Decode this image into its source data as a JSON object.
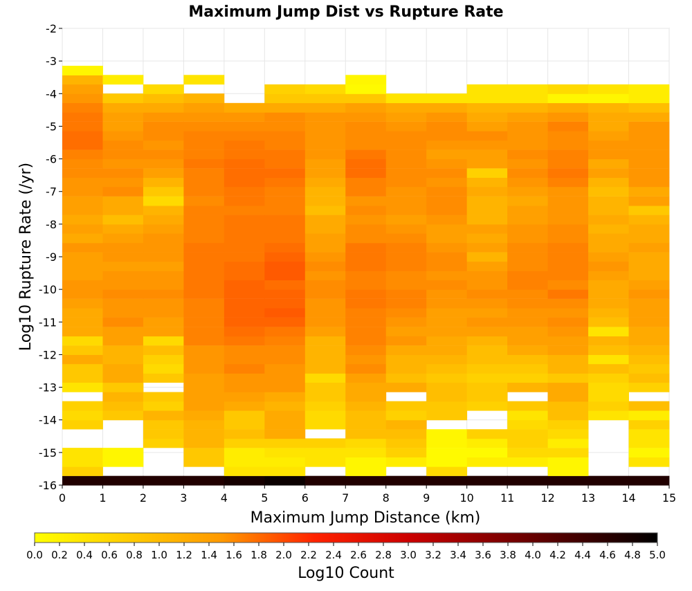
{
  "chart_data": {
    "type": "heatmap",
    "title": "Maximum Jump Dist vs Rupture Rate",
    "xlabel": "Maximum Jump Distance (km)",
    "ylabel": "Log10 Rupture Rate (/yr)",
    "colorbar_label": "Log10 Count",
    "xlim": [
      0,
      15
    ],
    "ylim": [
      -16,
      -2
    ],
    "x_ticks": [
      "0",
      "1",
      "2",
      "3",
      "4",
      "5",
      "6",
      "7",
      "8",
      "9",
      "10",
      "11",
      "12",
      "13",
      "14",
      "15"
    ],
    "y_ticks": [
      "-2",
      "-3",
      "-4",
      "-5",
      "-6",
      "-7",
      "-8",
      "-9",
      "-10",
      "-11",
      "-12",
      "-13",
      "-14",
      "-15",
      "-16"
    ],
    "colorbar_range": [
      0,
      5
    ],
    "colorbar_ticks": [
      "0.0",
      "0.2",
      "0.4",
      "0.6",
      "0.8",
      "1.0",
      "1.2",
      "1.4",
      "1.6",
      "1.8",
      "2.0",
      "2.2",
      "2.4",
      "2.6",
      "2.8",
      "3.0",
      "3.2",
      "3.4",
      "3.6",
      "3.8",
      "4.0",
      "4.2",
      "4.4",
      "4.6",
      "4.8",
      "5.0"
    ],
    "colormap": [
      "#ffff00",
      "#ff6600",
      "#dd0000",
      "#000000"
    ],
    "x_bins": [
      0.5,
      1.5,
      2.5,
      3.5,
      4.5,
      5.5,
      6.5,
      7.5,
      8.5,
      9.5,
      10.5,
      11.5,
      12.5,
      13.5,
      14.5
    ],
    "y_bin_width": 0.286,
    "y_bins": [
      -15.86,
      -15.57,
      -15.29,
      -15.0,
      -14.71,
      -14.43,
      -14.14,
      -13.86,
      -13.57,
      -13.29,
      -13.0,
      -12.71,
      -12.43,
      -12.14,
      -11.86,
      -11.57,
      -11.29,
      -11.0,
      -10.71,
      -10.43,
      -10.14,
      -9.86,
      -9.57,
      -9.29,
      -9.0,
      -8.71,
      -8.43,
      -8.14,
      -7.86,
      -7.57,
      -7.29,
      -7.0,
      -6.71,
      -6.43,
      -6.14,
      -5.86,
      -5.57,
      -5.29,
      -5.0,
      -4.71,
      -4.43,
      -4.14,
      -3.86,
      -3.57,
      -3.29
    ],
    "z": [
      [
        4.7,
        4.7,
        4.7,
        4.7,
        4.8,
        4.9,
        4.7,
        4.7,
        4.7,
        4.7,
        4.7,
        4.7,
        4.7,
        4.7,
        4.7
      ],
      [
        0.5,
        null,
        null,
        null,
        0.3,
        0.3,
        null,
        0.1,
        null,
        0.4,
        null,
        null,
        0.1,
        null,
        null
      ],
      [
        0.3,
        0.1,
        null,
        0.6,
        0.2,
        0.2,
        0.3,
        0.1,
        0.2,
        0.05,
        0.2,
        0.2,
        0.1,
        null,
        0.3
      ],
      [
        0.3,
        0.1,
        null,
        0.6,
        0.2,
        0.3,
        0.3,
        0.3,
        0.5,
        0.05,
        0.05,
        0.4,
        0.4,
        null,
        0.1
      ],
      [
        null,
        null,
        0.5,
        0.8,
        0.5,
        0.5,
        0.5,
        0.4,
        0.6,
        0.1,
        0.2,
        0.5,
        0.2,
        null,
        0.3
      ],
      [
        null,
        null,
        0.6,
        0.8,
        0.7,
        0.9,
        null,
        0.7,
        0.7,
        0.1,
        0.5,
        0.5,
        0.4,
        null,
        0.3
      ],
      [
        0.5,
        null,
        0.6,
        0.8,
        0.6,
        0.9,
        0.4,
        0.7,
        0.8,
        null,
        null,
        0.4,
        0.5,
        null,
        0.5
      ],
      [
        0.4,
        0.6,
        0.8,
        0.9,
        0.6,
        0.9,
        0.4,
        0.7,
        0.5,
        0.6,
        null,
        0.3,
        0.7,
        0.3,
        0.2
      ],
      [
        0.5,
        0.7,
        0.5,
        1.0,
        0.9,
        0.8,
        0.5,
        0.8,
        0.6,
        0.6,
        0.5,
        0.6,
        0.7,
        0.5,
        0.7
      ],
      [
        null,
        0.8,
        0.6,
        1.0,
        1.0,
        0.9,
        0.6,
        0.9,
        null,
        0.7,
        0.6,
        null,
        0.9,
        0.4,
        null
      ],
      [
        0.3,
        0.6,
        null,
        1.0,
        1.1,
        1.1,
        0.6,
        0.9,
        0.9,
        0.7,
        0.6,
        0.8,
        0.9,
        0.4,
        0.5
      ],
      [
        0.6,
        0.9,
        0.6,
        1.0,
        1.1,
        1.1,
        0.4,
        1.0,
        0.7,
        0.6,
        0.5,
        0.5,
        0.6,
        0.5,
        0.7
      ],
      [
        0.6,
        0.9,
        0.4,
        1.1,
        1.3,
        1.1,
        0.8,
        1.2,
        0.8,
        0.7,
        0.6,
        0.6,
        0.8,
        0.7,
        0.6
      ],
      [
        0.9,
        0.8,
        0.5,
        1.1,
        1.2,
        1.2,
        0.8,
        1.1,
        0.8,
        0.8,
        0.7,
        0.7,
        0.8,
        0.3,
        0.7
      ],
      [
        0.6,
        0.8,
        0.7,
        1.1,
        1.2,
        1.2,
        0.8,
        1.2,
        0.9,
        0.9,
        0.7,
        0.9,
        1.0,
        0.7,
        0.8
      ],
      [
        0.4,
        1.0,
        0.4,
        1.3,
        1.4,
        1.3,
        0.8,
        1.3,
        1.1,
        0.9,
        0.8,
        1.0,
        1.0,
        0.8,
        0.9
      ],
      [
        0.9,
        1.0,
        1.0,
        1.3,
        1.5,
        1.4,
        1.0,
        1.3,
        1.0,
        1.0,
        1.0,
        1.0,
        1.1,
        0.3,
        0.9
      ],
      [
        0.9,
        1.2,
        1.0,
        1.3,
        1.6,
        1.6,
        1.1,
        1.3,
        1.1,
        1.0,
        1.1,
        1.1,
        1.2,
        0.7,
        1.0
      ],
      [
        0.9,
        1.1,
        1.1,
        1.3,
        1.6,
        1.7,
        1.1,
        1.3,
        1.2,
        1.0,
        1.0,
        1.1,
        1.1,
        0.8,
        1.0
      ],
      [
        1.0,
        1.1,
        1.1,
        1.3,
        1.6,
        1.6,
        1.1,
        1.4,
        1.3,
        1.1,
        1.1,
        1.2,
        1.2,
        0.9,
        1.0
      ],
      [
        1.1,
        1.2,
        1.2,
        1.4,
        1.6,
        1.6,
        1.2,
        1.4,
        1.3,
        1.1,
        1.2,
        1.2,
        1.4,
        0.9,
        1.1
      ],
      [
        1.1,
        1.1,
        1.1,
        1.4,
        1.6,
        1.5,
        1.2,
        1.3,
        1.2,
        1.2,
        1.1,
        1.3,
        1.2,
        0.9,
        1.0
      ],
      [
        1.0,
        1.1,
        1.1,
        1.4,
        1.5,
        1.7,
        1.1,
        1.3,
        1.2,
        1.1,
        1.1,
        1.3,
        1.3,
        1.0,
        0.9
      ],
      [
        1.0,
        1.0,
        1.0,
        1.4,
        1.5,
        1.7,
        1.2,
        1.4,
        1.3,
        1.2,
        1.0,
        1.2,
        1.3,
        1.1,
        0.9
      ],
      [
        1.0,
        1.1,
        1.1,
        1.4,
        1.4,
        1.6,
        1.1,
        1.4,
        1.3,
        1.2,
        0.8,
        1.2,
        1.3,
        1.0,
        0.9
      ],
      [
        1.1,
        1.1,
        1.1,
        1.4,
        1.4,
        1.5,
        1.0,
        1.4,
        1.3,
        1.1,
        1.0,
        1.2,
        1.3,
        0.9,
        1.0
      ],
      [
        0.9,
        1.0,
        1.1,
        1.3,
        1.4,
        1.4,
        1.0,
        1.2,
        1.2,
        1.0,
        0.9,
        1.1,
        1.2,
        0.9,
        0.9
      ],
      [
        1.0,
        0.9,
        1.0,
        1.3,
        1.4,
        1.4,
        0.9,
        1.2,
        1.1,
        1.0,
        1.0,
        1.1,
        1.2,
        0.8,
        0.9
      ],
      [
        0.9,
        0.7,
        0.9,
        1.3,
        1.4,
        1.4,
        0.9,
        1.1,
        1.0,
        1.1,
        0.8,
        1.0,
        1.1,
        0.9,
        0.8
      ],
      [
        1.0,
        0.9,
        0.8,
        1.3,
        1.3,
        1.3,
        0.7,
        1.2,
        1.1,
        1.2,
        0.8,
        1.0,
        1.1,
        0.8,
        0.6
      ],
      [
        1.0,
        0.9,
        0.4,
        1.2,
        1.4,
        1.3,
        0.8,
        1.1,
        1.1,
        1.2,
        0.8,
        0.9,
        1.1,
        0.8,
        1.0
      ],
      [
        1.1,
        1.2,
        0.6,
        1.3,
        1.4,
        1.3,
        0.8,
        1.3,
        1.1,
        1.2,
        0.9,
        1.0,
        1.1,
        0.7,
        0.9
      ],
      [
        1.1,
        1.1,
        0.8,
        1.3,
        1.5,
        1.4,
        0.9,
        1.3,
        1.2,
        1.1,
        0.8,
        1.1,
        1.3,
        0.8,
        1.1
      ],
      [
        1.2,
        1.2,
        1.0,
        1.3,
        1.5,
        1.5,
        1.0,
        1.5,
        1.2,
        1.2,
        0.5,
        1.2,
        1.4,
        1.0,
        1.1
      ],
      [
        1.2,
        1.1,
        1.1,
        1.4,
        1.5,
        1.4,
        1.0,
        1.5,
        1.2,
        1.1,
        1.0,
        1.1,
        1.3,
        0.9,
        1.1
      ],
      [
        1.3,
        1.2,
        1.2,
        1.3,
        1.4,
        1.4,
        1.1,
        1.4,
        1.2,
        1.0,
        1.0,
        1.2,
        1.3,
        1.1,
        1.1
      ],
      [
        1.5,
        1.2,
        1.1,
        1.3,
        1.4,
        1.3,
        1.1,
        1.2,
        1.2,
        1.1,
        1.1,
        1.1,
        1.2,
        1.1,
        1.1
      ],
      [
        1.5,
        1.1,
        1.2,
        1.3,
        1.3,
        1.3,
        1.1,
        1.2,
        1.2,
        1.2,
        1.2,
        1.1,
        1.2,
        1.0,
        1.1
      ],
      [
        1.4,
        1.0,
        1.2,
        1.2,
        1.2,
        1.2,
        1.1,
        1.2,
        1.1,
        1.2,
        1.0,
        1.1,
        1.3,
        0.9,
        1.1
      ],
      [
        1.4,
        1.0,
        1.1,
        1.1,
        1.1,
        1.2,
        1.1,
        1.1,
        1.0,
        1.1,
        0.9,
        1.0,
        1.1,
        0.9,
        0.9
      ],
      [
        1.3,
        0.9,
        0.9,
        1.0,
        0.9,
        0.9,
        0.9,
        1.0,
        0.9,
        0.9,
        0.8,
        0.8,
        0.9,
        0.8,
        0.7
      ],
      [
        1.1,
        0.6,
        0.7,
        0.8,
        null,
        0.6,
        0.6,
        0.6,
        0.3,
        0.3,
        0.3,
        0.3,
        0.1,
        0.1,
        0.2
      ],
      [
        1.0,
        null,
        0.4,
        null,
        null,
        0.5,
        0.4,
        0.05,
        null,
        null,
        0.3,
        0.3,
        0.4,
        0.3,
        0.2
      ],
      [
        0.8,
        0.2,
        null,
        0.3,
        null,
        null,
        null,
        0.1,
        null,
        null,
        null,
        null,
        null,
        null,
        null
      ],
      [
        0.1,
        null,
        null,
        null,
        null,
        null,
        null,
        null,
        null,
        null,
        null,
        null,
        null,
        null,
        null
      ]
    ]
  }
}
